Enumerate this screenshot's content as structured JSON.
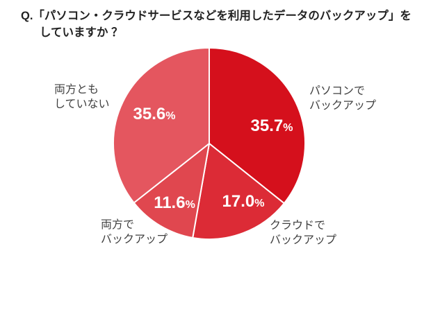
{
  "header": {
    "title_line1": "Q.「パソコン・クラウドサービスなどを利用したデータのバックアップ」を",
    "title_line2": "していますか ？"
  },
  "chart_data": {
    "type": "pie",
    "title": "Q.「パソコン・クラウドサービスなどを利用したデータのバックアップ」をしていますか？",
    "unit": "%",
    "start_angle_deg": -90,
    "direction": "clockwise",
    "legend_position": "labels-outside",
    "separator_color": "#ffffff",
    "background_color": "#ffffff",
    "slices": [
      {
        "label": "パソコンで\nバックアップ",
        "value": 35.7,
        "value_label": "35.7",
        "color": "#d5101c"
      },
      {
        "label": "クラウドで\nバックアップ",
        "value": 17.0,
        "value_label": "17.0",
        "color": "#dc2b36"
      },
      {
        "label": "両方で\nバックアップ",
        "value": 11.6,
        "value_label": "11.6",
        "color": "#e0474f"
      },
      {
        "label": "両方とも\nしていない",
        "value": 35.6,
        "value_label": "35.6",
        "color": "#e4565f"
      }
    ]
  }
}
